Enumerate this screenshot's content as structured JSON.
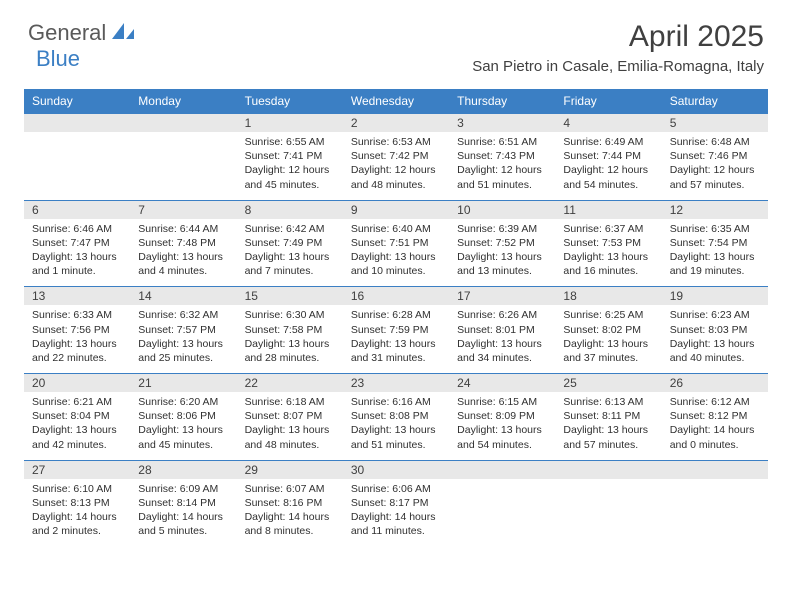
{
  "logo": {
    "text1": "General",
    "text2": "Blue"
  },
  "title": "April 2025",
  "location": "San Pietro in Casale, Emilia-Romagna, Italy",
  "colors": {
    "header_bg": "#3b7fc4",
    "header_text": "#ffffff",
    "day_num_bg": "#e8e8e8",
    "body_text": "#303030",
    "title_text": "#404040",
    "logo_gray": "#5a5a5a",
    "logo_blue": "#3b7fc4",
    "row_border": "#3b7fc4"
  },
  "typography": {
    "title_fontsize": 30,
    "location_fontsize": 15,
    "day_header_fontsize": 12,
    "day_num_fontsize": 12,
    "cell_fontsize": 10.5
  },
  "day_headers": [
    "Sunday",
    "Monday",
    "Tuesday",
    "Wednesday",
    "Thursday",
    "Friday",
    "Saturday"
  ],
  "weeks": [
    [
      {
        "num": "",
        "lines": []
      },
      {
        "num": "",
        "lines": []
      },
      {
        "num": "1",
        "lines": [
          "Sunrise: 6:55 AM",
          "Sunset: 7:41 PM",
          "Daylight: 12 hours",
          "and 45 minutes."
        ]
      },
      {
        "num": "2",
        "lines": [
          "Sunrise: 6:53 AM",
          "Sunset: 7:42 PM",
          "Daylight: 12 hours",
          "and 48 minutes."
        ]
      },
      {
        "num": "3",
        "lines": [
          "Sunrise: 6:51 AM",
          "Sunset: 7:43 PM",
          "Daylight: 12 hours",
          "and 51 minutes."
        ]
      },
      {
        "num": "4",
        "lines": [
          "Sunrise: 6:49 AM",
          "Sunset: 7:44 PM",
          "Daylight: 12 hours",
          "and 54 minutes."
        ]
      },
      {
        "num": "5",
        "lines": [
          "Sunrise: 6:48 AM",
          "Sunset: 7:46 PM",
          "Daylight: 12 hours",
          "and 57 minutes."
        ]
      }
    ],
    [
      {
        "num": "6",
        "lines": [
          "Sunrise: 6:46 AM",
          "Sunset: 7:47 PM",
          "Daylight: 13 hours",
          "and 1 minute."
        ]
      },
      {
        "num": "7",
        "lines": [
          "Sunrise: 6:44 AM",
          "Sunset: 7:48 PM",
          "Daylight: 13 hours",
          "and 4 minutes."
        ]
      },
      {
        "num": "8",
        "lines": [
          "Sunrise: 6:42 AM",
          "Sunset: 7:49 PM",
          "Daylight: 13 hours",
          "and 7 minutes."
        ]
      },
      {
        "num": "9",
        "lines": [
          "Sunrise: 6:40 AM",
          "Sunset: 7:51 PM",
          "Daylight: 13 hours",
          "and 10 minutes."
        ]
      },
      {
        "num": "10",
        "lines": [
          "Sunrise: 6:39 AM",
          "Sunset: 7:52 PM",
          "Daylight: 13 hours",
          "and 13 minutes."
        ]
      },
      {
        "num": "11",
        "lines": [
          "Sunrise: 6:37 AM",
          "Sunset: 7:53 PM",
          "Daylight: 13 hours",
          "and 16 minutes."
        ]
      },
      {
        "num": "12",
        "lines": [
          "Sunrise: 6:35 AM",
          "Sunset: 7:54 PM",
          "Daylight: 13 hours",
          "and 19 minutes."
        ]
      }
    ],
    [
      {
        "num": "13",
        "lines": [
          "Sunrise: 6:33 AM",
          "Sunset: 7:56 PM",
          "Daylight: 13 hours",
          "and 22 minutes."
        ]
      },
      {
        "num": "14",
        "lines": [
          "Sunrise: 6:32 AM",
          "Sunset: 7:57 PM",
          "Daylight: 13 hours",
          "and 25 minutes."
        ]
      },
      {
        "num": "15",
        "lines": [
          "Sunrise: 6:30 AM",
          "Sunset: 7:58 PM",
          "Daylight: 13 hours",
          "and 28 minutes."
        ]
      },
      {
        "num": "16",
        "lines": [
          "Sunrise: 6:28 AM",
          "Sunset: 7:59 PM",
          "Daylight: 13 hours",
          "and 31 minutes."
        ]
      },
      {
        "num": "17",
        "lines": [
          "Sunrise: 6:26 AM",
          "Sunset: 8:01 PM",
          "Daylight: 13 hours",
          "and 34 minutes."
        ]
      },
      {
        "num": "18",
        "lines": [
          "Sunrise: 6:25 AM",
          "Sunset: 8:02 PM",
          "Daylight: 13 hours",
          "and 37 minutes."
        ]
      },
      {
        "num": "19",
        "lines": [
          "Sunrise: 6:23 AM",
          "Sunset: 8:03 PM",
          "Daylight: 13 hours",
          "and 40 minutes."
        ]
      }
    ],
    [
      {
        "num": "20",
        "lines": [
          "Sunrise: 6:21 AM",
          "Sunset: 8:04 PM",
          "Daylight: 13 hours",
          "and 42 minutes."
        ]
      },
      {
        "num": "21",
        "lines": [
          "Sunrise: 6:20 AM",
          "Sunset: 8:06 PM",
          "Daylight: 13 hours",
          "and 45 minutes."
        ]
      },
      {
        "num": "22",
        "lines": [
          "Sunrise: 6:18 AM",
          "Sunset: 8:07 PM",
          "Daylight: 13 hours",
          "and 48 minutes."
        ]
      },
      {
        "num": "23",
        "lines": [
          "Sunrise: 6:16 AM",
          "Sunset: 8:08 PM",
          "Daylight: 13 hours",
          "and 51 minutes."
        ]
      },
      {
        "num": "24",
        "lines": [
          "Sunrise: 6:15 AM",
          "Sunset: 8:09 PM",
          "Daylight: 13 hours",
          "and 54 minutes."
        ]
      },
      {
        "num": "25",
        "lines": [
          "Sunrise: 6:13 AM",
          "Sunset: 8:11 PM",
          "Daylight: 13 hours",
          "and 57 minutes."
        ]
      },
      {
        "num": "26",
        "lines": [
          "Sunrise: 6:12 AM",
          "Sunset: 8:12 PM",
          "Daylight: 14 hours",
          "and 0 minutes."
        ]
      }
    ],
    [
      {
        "num": "27",
        "lines": [
          "Sunrise: 6:10 AM",
          "Sunset: 8:13 PM",
          "Daylight: 14 hours",
          "and 2 minutes."
        ]
      },
      {
        "num": "28",
        "lines": [
          "Sunrise: 6:09 AM",
          "Sunset: 8:14 PM",
          "Daylight: 14 hours",
          "and 5 minutes."
        ]
      },
      {
        "num": "29",
        "lines": [
          "Sunrise: 6:07 AM",
          "Sunset: 8:16 PM",
          "Daylight: 14 hours",
          "and 8 minutes."
        ]
      },
      {
        "num": "30",
        "lines": [
          "Sunrise: 6:06 AM",
          "Sunset: 8:17 PM",
          "Daylight: 14 hours",
          "and 11 minutes."
        ]
      },
      {
        "num": "",
        "lines": []
      },
      {
        "num": "",
        "lines": []
      },
      {
        "num": "",
        "lines": []
      }
    ]
  ]
}
